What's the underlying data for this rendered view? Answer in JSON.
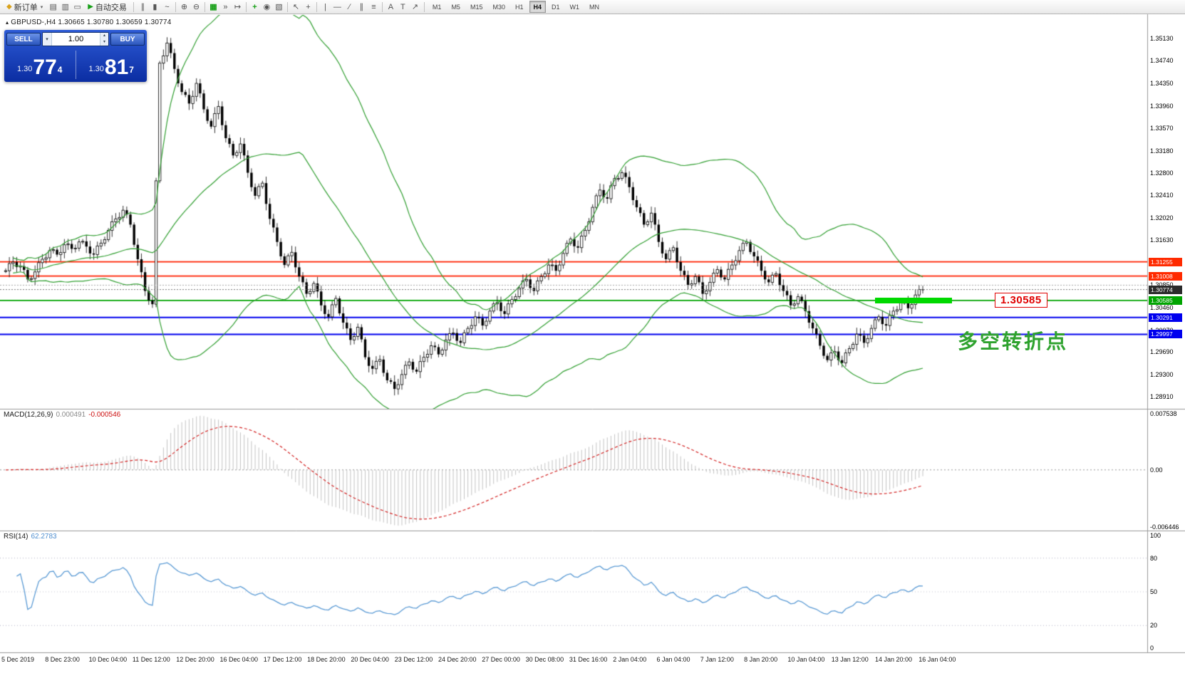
{
  "colors": {
    "accent_green": "#18a018",
    "gold": "#d9a21b",
    "panel_blue": "#1440b8",
    "resistance_red": "#ff2000",
    "support_blue": "#0000ee",
    "pivot_green": "#00a400",
    "highlight_green": "#00d900",
    "bollinger_green": "#33a033",
    "macd_histogram": "#c4c4c4",
    "macd_signal_red": "#d42222",
    "rsi_blue": "#5b9bd5"
  },
  "icons": {
    "symbol_marker": "▴",
    "dropdown": "▾",
    "spin_up": "▴",
    "spin_down": "▾"
  },
  "toolbar": {
    "new_order": {
      "label": "新订单",
      "glyph": "◆"
    },
    "window_icons": [
      {
        "name": "charts-window",
        "glyph": "▤"
      },
      {
        "name": "profiles",
        "glyph": "▥"
      },
      {
        "name": "terminal-window",
        "glyph": "▭"
      }
    ],
    "auto_trading": {
      "label": "自动交易",
      "glyph": "▶"
    },
    "groups": [
      [
        {
          "name": "bar-chart",
          "glyph": "∥"
        },
        {
          "name": "candlestick-chart",
          "glyph": "▮"
        },
        {
          "name": "line-chart",
          "glyph": "~"
        }
      ],
      [
        {
          "name": "zoom-in",
          "glyph": "⊕"
        },
        {
          "name": "zoom-out",
          "glyph": "⊖"
        }
      ],
      [
        {
          "name": "tile-windows",
          "glyph": "▦",
          "color": "#18a018"
        },
        {
          "name": "auto-scroll",
          "glyph": "»"
        },
        {
          "name": "chart-shift",
          "glyph": "↦"
        }
      ],
      [
        {
          "name": "indicators",
          "glyph": "+",
          "color": "#18a018"
        },
        {
          "name": "periods",
          "glyph": "◉"
        },
        {
          "name": "templates",
          "glyph": "▧"
        }
      ],
      [
        {
          "name": "cursor",
          "glyph": "↖"
        },
        {
          "name": "crosshair",
          "glyph": "+"
        }
      ],
      [
        {
          "name": "vertical-line",
          "glyph": "|"
        },
        {
          "name": "horizontal-line",
          "glyph": "―"
        },
        {
          "name": "trendline",
          "glyph": "∕"
        },
        {
          "name": "equidistant-channel",
          "glyph": "∥"
        },
        {
          "name": "fibonacci",
          "glyph": "≡"
        }
      ],
      [
        {
          "name": "text",
          "glyph": "A"
        },
        {
          "name": "text-label",
          "glyph": "T"
        },
        {
          "name": "arrows",
          "glyph": "↗"
        }
      ]
    ],
    "timeframes": [
      "M1",
      "M5",
      "M15",
      "M30",
      "H1",
      "H4",
      "D1",
      "W1",
      "MN"
    ],
    "active_timeframe": "H4"
  },
  "chart": {
    "symbol_period": "GBPUSD-,H4",
    "ohlc": "1.30665 1.30780 1.30659 1.30774"
  },
  "trade_panel": {
    "sell_label": "SELL",
    "buy_label": "BUY",
    "volume": "1.00",
    "sell_price_prefix": "1.30",
    "sell_price_big": "77",
    "sell_price_sup": "4",
    "buy_price_prefix": "1.30",
    "buy_price_big": "81",
    "buy_price_sup": "7"
  },
  "levels": {
    "resistance": [
      {
        "price": 1.31255,
        "color": "#ff2000"
      },
      {
        "price": 1.31008,
        "color": "#ff2000"
      }
    ],
    "pivot": {
      "price": 1.30585,
      "color": "#00a400",
      "label": "1.30585"
    },
    "support": [
      {
        "price": 1.30291,
        "color": "#0000ee"
      },
      {
        "price": 1.29997,
        "color": "#0000ee"
      }
    ],
    "dotted_line": 1.3085,
    "current_price": {
      "price": 1.30774,
      "label": "1.30774"
    }
  },
  "annotation": {
    "text": "多空转折点",
    "color": "#2ea22e"
  },
  "price_axis": {
    "labels": [
      "1.35130",
      "1.34740",
      "1.34350",
      "1.33960",
      "1.33570",
      "1.33180",
      "1.32800",
      "1.32410",
      "1.32020",
      "1.31630",
      "1.30850",
      "1.30460",
      "1.30070",
      "1.29690",
      "1.29300",
      "1.28910"
    ],
    "badges": [
      {
        "text": "1.31255",
        "price": 1.31255,
        "bg": "#ff2a00"
      },
      {
        "text": "1.31008",
        "price": 1.31008,
        "bg": "#ff2a00"
      },
      {
        "text": "1.30774",
        "price": 1.30774,
        "bg": "#2b2b2b"
      },
      {
        "text": "1.30585",
        "price": 1.30585,
        "bg": "#00a400"
      },
      {
        "text": "1.30291",
        "price": 1.30291,
        "bg": "#0000ee"
      },
      {
        "text": "1.29997",
        "price": 1.29997,
        "bg": "#0000ee"
      }
    ]
  },
  "macd_panel": {
    "title": "MACD(12,26,9)",
    "value_main": "0.000491",
    "value_signal": "-0.000546",
    "axis_max": "0.007538",
    "axis_zero": "0.00",
    "axis_min": "-0.006446"
  },
  "rsi_panel": {
    "title": "RSI(14)",
    "value": "62.2783",
    "axis": [
      "100",
      "80",
      "50",
      "20",
      "0"
    ]
  },
  "time_axis": [
    "5 Dec 2019",
    "8 Dec 23:00",
    "10 Dec 04:00",
    "11 Dec 12:00",
    "12 Dec 20:00",
    "16 Dec 04:00",
    "17 Dec 12:00",
    "18 Dec 20:00",
    "20 Dec 04:00",
    "23 Dec 12:00",
    "24 Dec 20:00",
    "27 Dec 00:00",
    "30 Dec 08:00",
    "31 Dec 16:00",
    "2 Jan 04:00",
    "6 Jan 04:00",
    "7 Jan 12:00",
    "8 Jan 20:00",
    "10 Jan 04:00",
    "13 Jan 12:00",
    "14 Jan 20:00",
    "16 Jan 04:00"
  ],
  "chart_data": {
    "type": "candlestick",
    "symbol": "GBPUSD",
    "timeframe": "H4",
    "visible_price_range": {
      "high": 1.3545,
      "low": 1.2878
    },
    "closes": [
      1.311,
      1.3125,
      1.3118,
      1.3095,
      1.3108,
      1.313,
      1.3145,
      1.3138,
      1.3155,
      1.3148,
      1.316,
      1.3152,
      1.3138,
      1.3158,
      1.318,
      1.32,
      1.3215,
      1.319,
      1.313,
      1.3075,
      1.3052,
      1.347,
      1.3505,
      1.346,
      1.342,
      1.34,
      1.3435,
      1.339,
      1.336,
      1.3395,
      1.334,
      1.331,
      1.333,
      1.328,
      1.324,
      1.3262,
      1.32,
      1.316,
      1.312,
      1.3142,
      1.31,
      1.307,
      1.3088,
      1.305,
      1.303,
      1.3062,
      1.302,
      1.299,
      1.3012,
      1.296,
      1.294,
      1.2956,
      1.292,
      1.2905,
      1.293,
      1.2952,
      1.2935,
      1.296,
      1.298,
      1.2965,
      1.299,
      1.3002,
      1.2985,
      1.301,
      1.303,
      1.3015,
      1.304,
      1.3055,
      1.3035,
      1.306,
      1.308,
      1.3095,
      1.3075,
      1.31,
      1.312,
      1.311,
      1.314,
      1.3165,
      1.315,
      1.318,
      1.322,
      1.325,
      1.3235,
      1.327,
      1.328,
      1.3255,
      1.322,
      1.319,
      1.321,
      1.316,
      1.313,
      1.315,
      1.311,
      1.3085,
      1.31,
      1.307,
      1.309,
      1.3112,
      1.3095,
      1.312,
      1.3145,
      1.316,
      1.3135,
      1.311,
      1.309,
      1.3105,
      1.3075,
      1.305,
      1.3065,
      1.304,
      1.301,
      1.298,
      1.2955,
      1.297,
      1.295,
      1.2975,
      1.3,
      1.2985,
      1.301,
      1.303,
      1.3015,
      1.304,
      1.3055,
      1.3045,
      1.3068,
      1.3077
    ],
    "indicators": {
      "bollinger_bands": {
        "period": 20,
        "deviation": 2
      },
      "macd": {
        "fast": 12,
        "slow": 26,
        "signal": 9,
        "current_main": 0.000491,
        "current_signal": -0.000546
      },
      "rsi": {
        "period": 14,
        "current": 62.2783
      }
    },
    "horizontal_levels": [
      1.31255,
      1.31008,
      1.30585,
      1.30291,
      1.29997
    ],
    "current_price": 1.30774
  }
}
